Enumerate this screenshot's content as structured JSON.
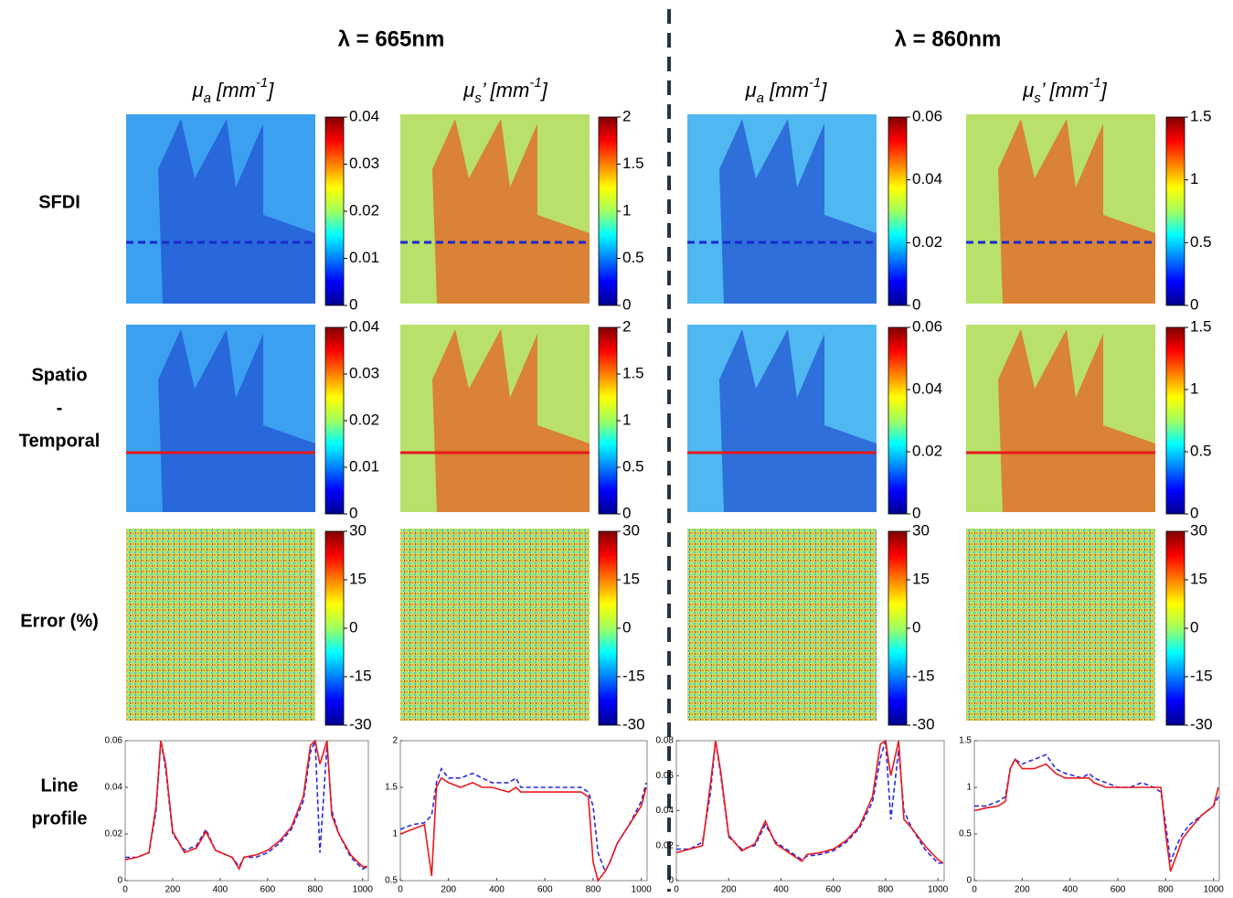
{
  "titles": [
    "λ = 665nm",
    "λ = 860nm"
  ],
  "column_labels": [
    [
      "μ",
      "a",
      " [mm",
      "-1",
      "]"
    ],
    [
      "μ",
      "s",
      "’ [mm",
      "-1",
      "]"
    ],
    [
      "μ",
      "a",
      " [mm",
      "-1",
      "]"
    ],
    [
      "μ",
      "s",
      "’ [mm",
      "-1",
      "]"
    ]
  ],
  "row_labels": [
    [
      "SFDI"
    ],
    [
      "Spatio",
      "-",
      "Temporal"
    ],
    [
      "Error (%)"
    ],
    [
      "Line",
      "profile"
    ]
  ],
  "colorbars": [
    {
      "ylim": [
        0,
        0.04
      ],
      "yticks": [
        0,
        0.01,
        0.02,
        0.03,
        0.04
      ]
    },
    {
      "ylim": [
        0,
        2
      ],
      "yticks": [
        0,
        0.5,
        1,
        1.5,
        2
      ]
    },
    {
      "ylim": [
        0,
        0.06
      ],
      "yticks": [
        0,
        0.02,
        0.04,
        0.06
      ]
    },
    {
      "ylim": [
        0,
        1.5
      ],
      "yticks": [
        0,
        0.5,
        1,
        1.5
      ]
    },
    {
      "ylim": [
        0,
        0.04
      ],
      "yticks": [
        0,
        0.01,
        0.02,
        0.03,
        0.04
      ]
    },
    {
      "ylim": [
        0,
        2
      ],
      "yticks": [
        0,
        0.5,
        1,
        1.5,
        2
      ]
    },
    {
      "ylim": [
        0,
        0.06
      ],
      "yticks": [
        0,
        0.02,
        0.04,
        0.06
      ]
    },
    {
      "ylim": [
        0,
        1.5
      ],
      "yticks": [
        0,
        0.5,
        1,
        1.5
      ]
    },
    {
      "ylim": [
        -30,
        30
      ],
      "yticks": [
        -30,
        -15,
        0,
        15,
        30
      ]
    },
    {
      "ylim": [
        -30,
        30
      ],
      "yticks": [
        -30,
        -15,
        0,
        15,
        30
      ]
    },
    {
      "ylim": [
        -30,
        30
      ],
      "yticks": [
        -30,
        -15,
        0,
        15,
        30
      ]
    },
    {
      "ylim": [
        -30,
        30
      ],
      "yticks": [
        -30,
        -15,
        0,
        15,
        30
      ]
    }
  ],
  "chart_data": [
    {
      "type": "line",
      "x": [
        0,
        50,
        100,
        130,
        150,
        170,
        200,
        250,
        300,
        340,
        380,
        450,
        480,
        500,
        550,
        600,
        650,
        700,
        750,
        780,
        800,
        820,
        850,
        870,
        900,
        950,
        1000,
        1020
      ],
      "xlim": [
        0,
        1024
      ],
      "xticks": [
        0,
        200,
        400,
        600,
        800,
        1000
      ],
      "ylim": [
        0,
        0.06
      ],
      "yticks": [
        0,
        0.02,
        0.04,
        0.06
      ],
      "series": [
        {
          "color": "#2a2ae0",
          "dashed": true,
          "values": [
            0.01,
            0.01,
            0.012,
            0.03,
            0.06,
            0.048,
            0.02,
            0.013,
            0.015,
            0.022,
            0.013,
            0.01,
            0.006,
            0.01,
            0.01,
            0.012,
            0.016,
            0.022,
            0.034,
            0.055,
            0.06,
            0.012,
            0.058,
            0.03,
            0.02,
            0.01,
            0.005,
            0.006
          ]
        },
        {
          "color": "#e8191c",
          "dashed": false,
          "values": [
            0.009,
            0.01,
            0.012,
            0.032,
            0.06,
            0.05,
            0.021,
            0.012,
            0.014,
            0.021,
            0.013,
            0.01,
            0.005,
            0.01,
            0.011,
            0.013,
            0.017,
            0.023,
            0.036,
            0.058,
            0.06,
            0.05,
            0.06,
            0.028,
            0.02,
            0.011,
            0.006,
            0.006
          ]
        }
      ]
    },
    {
      "type": "line",
      "x": [
        0,
        50,
        100,
        130,
        150,
        170,
        200,
        250,
        300,
        340,
        380,
        450,
        480,
        500,
        550,
        600,
        650,
        700,
        750,
        780,
        800,
        820,
        850,
        870,
        900,
        950,
        1000,
        1020
      ],
      "xlim": [
        0,
        1024
      ],
      "xticks": [
        0,
        200,
        400,
        600,
        800,
        1000
      ],
      "ylim": [
        0.5,
        2
      ],
      "yticks": [
        0.5,
        1,
        1.5,
        2
      ],
      "series": [
        {
          "color": "#2a2ae0",
          "dashed": true,
          "values": [
            1.05,
            1.1,
            1.12,
            1.2,
            1.55,
            1.7,
            1.6,
            1.6,
            1.65,
            1.6,
            1.55,
            1.55,
            1.6,
            1.5,
            1.5,
            1.5,
            1.5,
            1.5,
            1.5,
            1.45,
            1.3,
            0.8,
            0.6,
            0.7,
            0.9,
            1.1,
            1.35,
            1.55
          ]
        },
        {
          "color": "#e8191c",
          "dashed": false,
          "values": [
            1.0,
            1.05,
            1.1,
            0.55,
            1.5,
            1.6,
            1.55,
            1.5,
            1.55,
            1.5,
            1.5,
            1.45,
            1.5,
            1.45,
            1.45,
            1.45,
            1.45,
            1.45,
            1.45,
            1.4,
            0.7,
            0.5,
            0.6,
            0.7,
            0.9,
            1.1,
            1.3,
            1.5
          ]
        }
      ]
    },
    {
      "type": "line",
      "x": [
        0,
        50,
        100,
        130,
        150,
        170,
        200,
        250,
        300,
        340,
        380,
        450,
        480,
        500,
        550,
        600,
        650,
        700,
        750,
        780,
        800,
        820,
        850,
        870,
        900,
        950,
        1000,
        1020
      ],
      "xlim": [
        0,
        1024
      ],
      "xticks": [
        0,
        200,
        400,
        600,
        800,
        1000
      ],
      "ylim": [
        0,
        0.08
      ],
      "yticks": [
        0,
        0.02,
        0.04,
        0.06,
        0.08
      ],
      "series": [
        {
          "color": "#2a2ae0",
          "dashed": true,
          "values": [
            0.018,
            0.018,
            0.022,
            0.05,
            0.08,
            0.06,
            0.025,
            0.018,
            0.02,
            0.032,
            0.022,
            0.015,
            0.012,
            0.014,
            0.015,
            0.017,
            0.022,
            0.03,
            0.045,
            0.07,
            0.08,
            0.035,
            0.075,
            0.04,
            0.03,
            0.018,
            0.01,
            0.01
          ]
        },
        {
          "color": "#e8191c",
          "dashed": false,
          "values": [
            0.016,
            0.018,
            0.02,
            0.055,
            0.08,
            0.062,
            0.026,
            0.017,
            0.021,
            0.034,
            0.021,
            0.014,
            0.011,
            0.015,
            0.016,
            0.018,
            0.023,
            0.031,
            0.048,
            0.078,
            0.08,
            0.06,
            0.08,
            0.035,
            0.03,
            0.02,
            0.012,
            0.01
          ]
        }
      ]
    },
    {
      "type": "line",
      "x": [
        0,
        50,
        100,
        130,
        150,
        170,
        200,
        250,
        300,
        340,
        380,
        450,
        480,
        500,
        550,
        600,
        650,
        700,
        750,
        780,
        800,
        820,
        850,
        870,
        900,
        950,
        1000,
        1020
      ],
      "xlim": [
        0,
        1024
      ],
      "xticks": [
        0,
        200,
        400,
        600,
        800,
        1000
      ],
      "ylim": [
        0,
        1.5
      ],
      "yticks": [
        0,
        0.5,
        1,
        1.5
      ],
      "series": [
        {
          "color": "#2a2ae0",
          "dashed": true,
          "values": [
            0.8,
            0.8,
            0.85,
            0.9,
            1.2,
            1.3,
            1.25,
            1.3,
            1.35,
            1.2,
            1.15,
            1.1,
            1.15,
            1.1,
            1.05,
            1.0,
            1.0,
            1.05,
            1.0,
            0.95,
            0.6,
            0.2,
            0.4,
            0.5,
            0.6,
            0.7,
            0.8,
            0.9
          ]
        },
        {
          "color": "#e8191c",
          "dashed": false,
          "values": [
            0.75,
            0.78,
            0.8,
            0.85,
            1.2,
            1.3,
            1.2,
            1.2,
            1.25,
            1.15,
            1.1,
            1.1,
            1.1,
            1.05,
            1.0,
            1.0,
            1.0,
            1.0,
            1.0,
            1.0,
            0.5,
            0.1,
            0.3,
            0.45,
            0.55,
            0.7,
            0.8,
            1.0
          ]
        }
      ]
    }
  ]
}
